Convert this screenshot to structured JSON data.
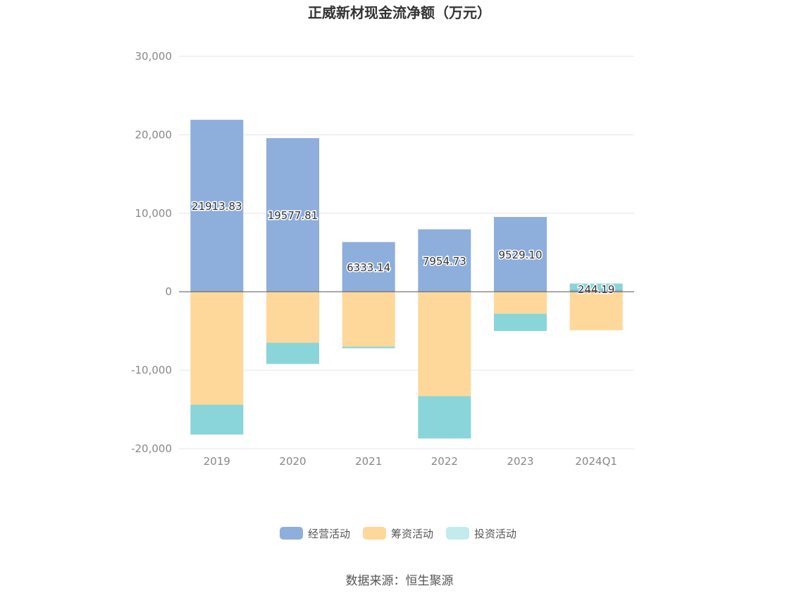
{
  "chart_data": {
    "type": "bar",
    "stacked": true,
    "title": "正威新材现金流净额（万元）",
    "categories": [
      "2019",
      "2020",
      "2021",
      "2022",
      "2023",
      "2024Q1"
    ],
    "series": [
      {
        "name": "经营活动",
        "color": "#8eaedb",
        "values": [
          21913.83,
          19577.81,
          6333.14,
          7954.73,
          9529.1,
          244.19
        ]
      },
      {
        "name": "筹资活动",
        "color": "#fdd89a",
        "values": [
          -14400,
          -6500,
          -7000,
          -13300,
          -2800,
          -4900
        ]
      },
      {
        "name": "投资活动",
        "color": "#89d5d9",
        "values": [
          -3800,
          -2700,
          -200,
          -5400,
          -2200,
          800
        ]
      }
    ],
    "data_labels": [
      "21913.83",
      "19577.81",
      "6333.14",
      "7954.73",
      "9529.10",
      "244.19"
    ],
    "y_ticks": [
      "30,000",
      "20,000",
      "10,000",
      "0",
      "-10,000",
      "-20,000"
    ],
    "ylim": [
      -20000,
      30000
    ],
    "grid": true,
    "legend_position": "bottom"
  },
  "legend": [
    {
      "label": "经营活动",
      "color": "#8eaedb"
    },
    {
      "label": "筹资活动",
      "color": "#fdd89a"
    },
    {
      "label": "投资活动",
      "color": "#c3ebed"
    }
  ],
  "source": "数据来源：恒生聚源"
}
